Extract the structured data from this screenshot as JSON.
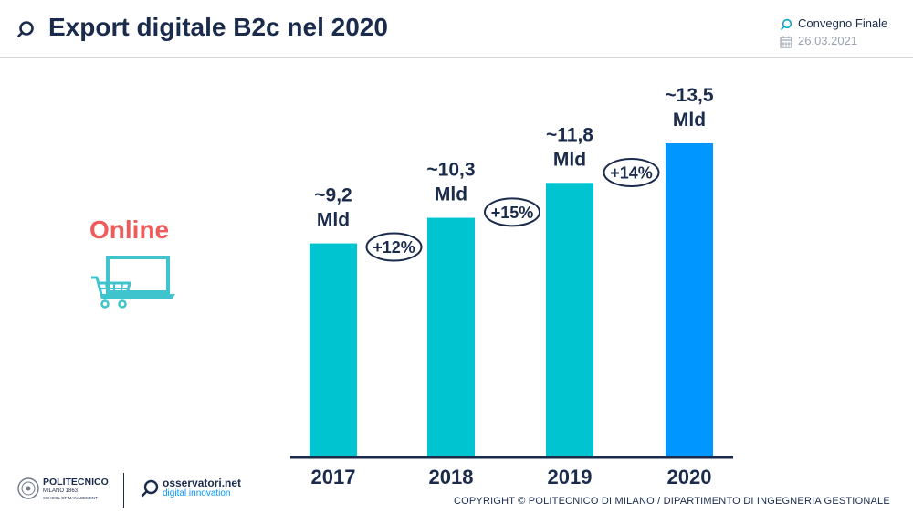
{
  "header": {
    "title": "Export digitale B2c nel 2020",
    "event_name": "Convegno Finale",
    "event_date": "26.03.2021"
  },
  "side": {
    "label": "Online"
  },
  "chart_data": {
    "type": "bar",
    "categories": [
      "2017",
      "2018",
      "2019",
      "2020"
    ],
    "values": [
      9.2,
      10.3,
      11.8,
      13.5
    ],
    "data_labels": [
      [
        "~9,2",
        "Mld"
      ],
      [
        "~10,3",
        "Mld"
      ],
      [
        "~11,8",
        "Mld"
      ],
      [
        "~13,5",
        "Mld"
      ]
    ],
    "growth_labels": [
      "+12%",
      "+15%",
      "+14%"
    ],
    "bar_colors": [
      "#00c4cf",
      "#00c4cf",
      "#00c4cf",
      "#0096ff"
    ],
    "title": "",
    "xlabel": "",
    "ylabel": "",
    "ylim": [
      0,
      13.5
    ],
    "grid": false
  },
  "footer": {
    "polimi_name": "POLITECNICO",
    "polimi_sub1": "MILANO 1863",
    "polimi_sub2": "SCHOOL OF MANAGEMENT",
    "osservatori_name": "osservatori.net",
    "osservatori_sub": "digital innovation",
    "copyright": "COPYRIGHT © POLITECNICO DI MILANO / DIPARTIMENTO DI INGEGNERIA GESTIONALE"
  },
  "colors": {
    "navy": "#1a2b4c",
    "teal": "#00c4cf",
    "blue": "#0096ff",
    "coral": "#ef5b5b",
    "grey": "#9aa2ad"
  }
}
